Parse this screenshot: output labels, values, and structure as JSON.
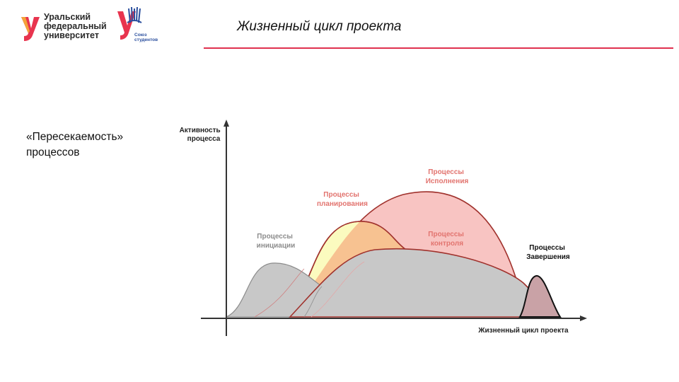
{
  "header": {
    "logo_lines": [
      "Уральский",
      "федеральный",
      "университет"
    ],
    "union_logo_lines": [
      "Союз",
      "студентов"
    ],
    "title": "Жизненный цикл проекта"
  },
  "side_text": {
    "line1": "«Пересекаемость»",
    "line2": "процессов"
  },
  "diagram": {
    "y_axis_label": [
      "Активность",
      "процесса"
    ],
    "x_axis_label": "Жизненный цикл проекта",
    "labels": {
      "initiation": [
        "Процессы",
        "инициации"
      ],
      "planning": [
        "Процессы",
        "планирования"
      ],
      "execution": [
        "Процессы",
        "Исполнения"
      ],
      "control": [
        "Процессы",
        "контроля"
      ],
      "closing": [
        "Процессы",
        "Завершения"
      ]
    },
    "colors": {
      "initiation": "#c8c8c8",
      "planning": "#fbfbbf",
      "execution": "#f8c4c2",
      "control": "#c8c8c8",
      "closing": "#c9a2a6",
      "overlap": "#f7c291",
      "curve_line": "#a0322d",
      "label_gray": "#8c8c8c",
      "label_red": "#e2746f"
    }
  }
}
